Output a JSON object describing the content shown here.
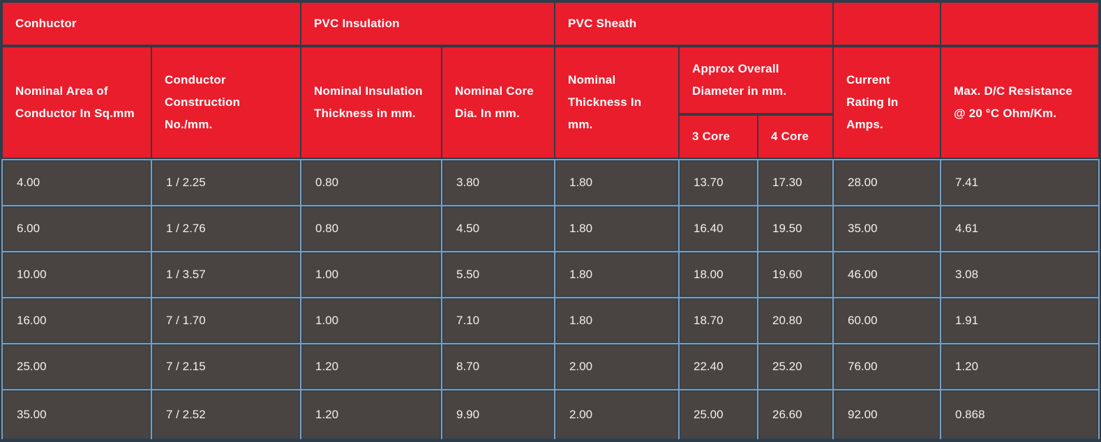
{
  "title": "Cable specification table",
  "colors": {
    "header_bg": "#EA1D2C",
    "grid_dark": "#2E3C49",
    "grid_light": "#7F9DB9",
    "cell_bg": "#494441",
    "cell_border": "#35424E",
    "header_text": "#FFFFFF",
    "cell_text": "#F3EFEC"
  },
  "header": {
    "groups": [
      "Conhuctor",
      "PVC Insulation",
      "PVC Sheath",
      "",
      ""
    ],
    "columns": [
      "Nominal Area of Conductor In Sq.mm",
      "Conductor Construction No./mm.",
      "Nominal Insulation Thickness in mm.",
      "Nominal Core Dia. In mm.",
      "Nominal Thickness In mm.",
      "Approx Overall Diameter in mm.",
      "Current Rating In Amps.",
      "Max. D/C Resistance @ 20 °C Ohm/Km."
    ],
    "subcolumns": [
      "3 Core",
      "4 Core"
    ]
  },
  "rows": [
    [
      "4.00",
      "1 / 2.25",
      "0.80",
      "3.80",
      "1.80",
      "13.70",
      "17.30",
      "28.00",
      "7.41"
    ],
    [
      "6.00",
      "1 / 2.76",
      "0.80",
      "4.50",
      "1.80",
      "16.40",
      "19.50",
      "35.00",
      "4.61"
    ],
    [
      "10.00",
      "1 / 3.57",
      "1.00",
      "5.50",
      "1.80",
      "18.00",
      "19.60",
      "46.00",
      "3.08"
    ],
    [
      "16.00",
      "7 / 1.70",
      "1.00",
      "7.10",
      "1.80",
      "18.70",
      "20.80",
      "60.00",
      "1.91"
    ],
    [
      "25.00",
      "7 / 2.15",
      "1.20",
      "8.70",
      "2.00",
      "22.40",
      "25.20",
      "76.00",
      "1.20"
    ],
    [
      "35.00",
      "7 / 2.52",
      "1.20",
      "9.90",
      "2.00",
      "25.00",
      "26.60",
      "92.00",
      "0.868"
    ]
  ]
}
